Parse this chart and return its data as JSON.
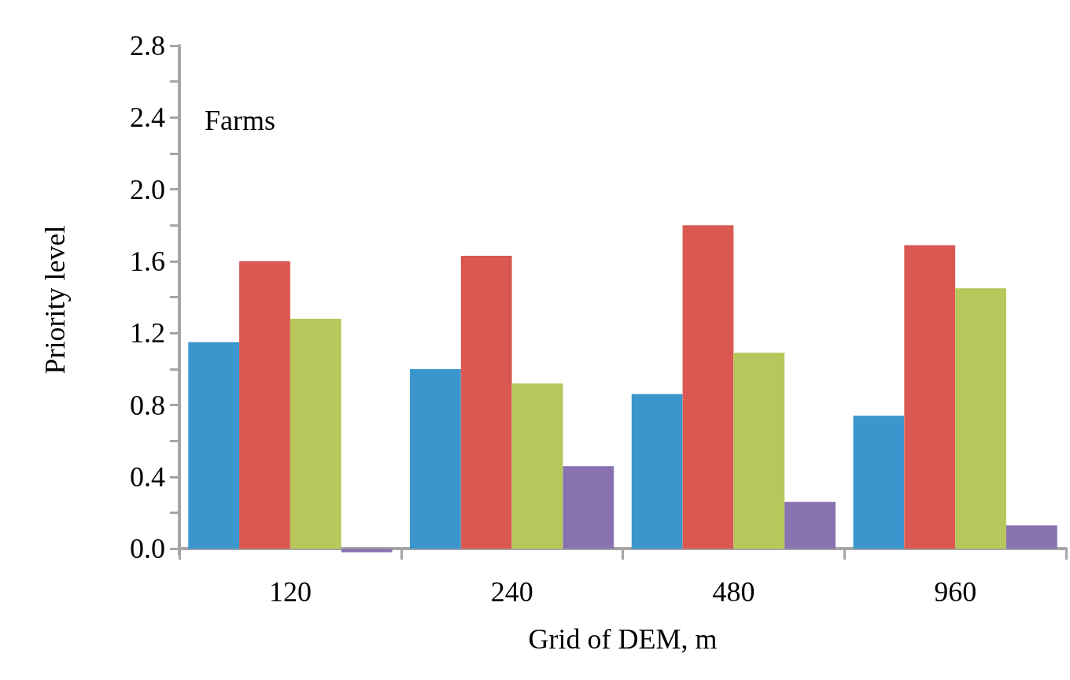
{
  "chart_data": {
    "type": "bar",
    "xlabel": "Grid of DEM, m",
    "ylabel": "Priority level",
    "annotations": [
      "Farms"
    ],
    "categories": [
      "120",
      "240",
      "480",
      "960"
    ],
    "series": [
      {
        "color": "#3a96cd",
        "values": [
          1.15,
          1.0,
          0.86,
          0.74
        ]
      },
      {
        "color": "#d95952",
        "values": [
          1.6,
          1.63,
          1.8,
          1.69
        ]
      },
      {
        "color": "#b6c75c",
        "values": [
          1.28,
          0.92,
          1.09,
          1.45
        ]
      },
      {
        "color": "#8873b0",
        "values": [
          -0.02,
          0.46,
          0.26,
          0.13
        ]
      }
    ],
    "ylim": [
      -0.03,
      2.8
    ],
    "yticks": [
      {
        "value": 0,
        "label": "0.0"
      },
      {
        "value": 0.2,
        "label": null
      },
      {
        "value": 0.4,
        "label": "0.4"
      },
      {
        "value": 0.6,
        "label": null
      },
      {
        "value": 0.8,
        "label": "0.8"
      },
      {
        "value": 1.0,
        "label": null
      },
      {
        "value": 1.2,
        "label": "1.2"
      },
      {
        "value": 1.4,
        "label": null
      },
      {
        "value": 1.6,
        "label": "1.6"
      },
      {
        "value": 1.8,
        "label": null
      },
      {
        "value": 2.0,
        "label": "2.0"
      },
      {
        "value": 2.2,
        "label": null
      },
      {
        "value": 2.4,
        "label": "2.4"
      },
      {
        "value": 2.6,
        "label": null
      },
      {
        "value": 2.8,
        "label": "2.8"
      }
    ],
    "grid": false
  }
}
